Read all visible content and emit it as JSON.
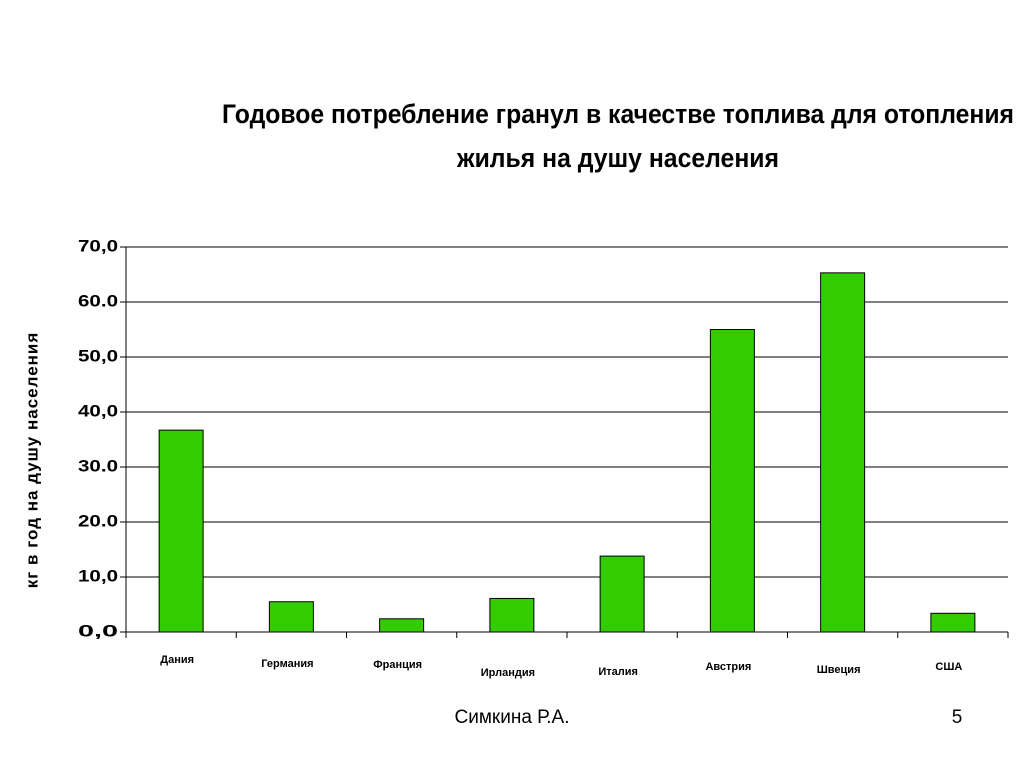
{
  "chart_data": {
    "type": "bar",
    "title": [
      "Годовое потребление гранул в качестве топлива для отопления",
      "жилья на душу населения"
    ],
    "y_label": "кг в год на душу населения",
    "categories": [
      "Дания",
      "Германия",
      "Франция",
      "Ирландия",
      "Италия",
      "Австрия",
      "Швеция",
      "США"
    ],
    "values": [
      36.7,
      5.5,
      2.4,
      6.1,
      13.8,
      55.0,
      65.3,
      3.4
    ],
    "color": "#33cc00",
    "ylim": [
      0,
      70
    ],
    "yticks": [
      {
        "value": 0,
        "label": "0,0"
      },
      {
        "value": 10,
        "label": "10,0"
      },
      {
        "value": 20,
        "label": "20.0"
      },
      {
        "value": 30,
        "label": "30.0"
      },
      {
        "value": 40,
        "label": "40,0"
      },
      {
        "value": 50,
        "label": "50,0"
      },
      {
        "value": 60,
        "label": "60.0"
      },
      {
        "value": 70,
        "label": "70,0"
      }
    ],
    "grid": true
  },
  "footer": {
    "author": "Симкина Р.А.",
    "page": "5"
  }
}
